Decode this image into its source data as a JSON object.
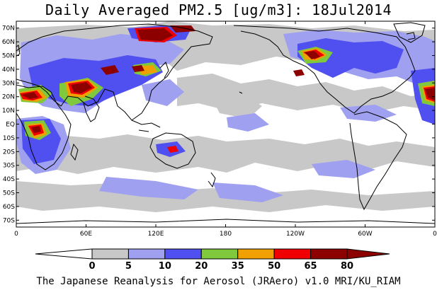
{
  "title": "Daily Averaged PM2.5 [ug/m3]: 18Jul2014",
  "footer": "The Japanese Reanalysis for Aerosol (JRAero) v1.0 MRI/KU_RIAM",
  "map": {
    "lon_range": [
      0,
      360
    ],
    "lat_range": [
      -75,
      75
    ],
    "lat_ticks": [
      "70N",
      "60N",
      "50N",
      "40N",
      "30N",
      "20N",
      "10N",
      "EQ",
      "10S",
      "20S",
      "30S",
      "40S",
      "50S",
      "60S",
      "70S"
    ],
    "lon_ticks": [
      "0",
      "60E",
      "120E",
      "180",
      "120W",
      "60W",
      "0"
    ]
  },
  "colorbar": {
    "levels": [
      "0",
      "5",
      "10",
      "20",
      "35",
      "50",
      "65",
      "80"
    ],
    "colors": [
      "#ffffff",
      "#c8c8c8",
      "#a0a0f0",
      "#5050f0",
      "#80c83c",
      "#f0a000",
      "#f00000",
      "#8c0000"
    ],
    "below_color": "#ffffff",
    "above_color": "#8c0000"
  },
  "colors": {
    "coast": "#000000",
    "land": "#ffffff",
    "ocean": "#ffffff"
  }
}
